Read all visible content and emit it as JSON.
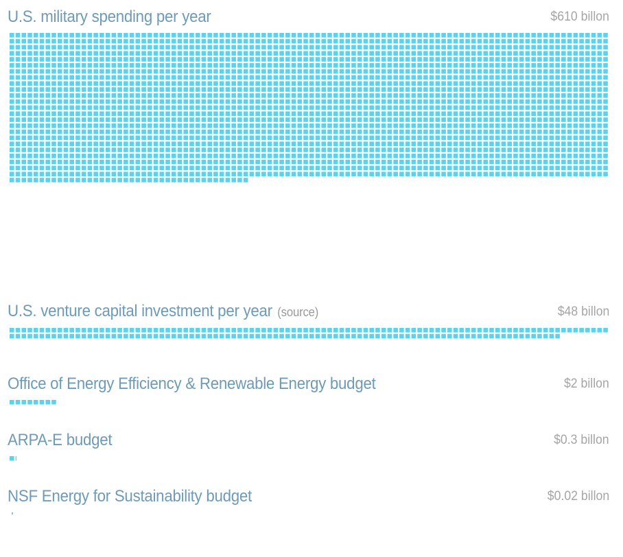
{
  "chart_data": {
    "type": "table",
    "unit_per_square_billion": 0.25,
    "square_color": "#5cd3ee",
    "label_color": "#6d9bb8",
    "value_color": "#a5a5a5",
    "rows": [
      {
        "label": "U.S. military spending per year",
        "note": "",
        "value": 610,
        "value_label": "$610 billon"
      },
      {
        "label": "U.S. venture capital investment per year",
        "note": "(source)",
        "value": 48,
        "value_label": "$48 billon"
      },
      {
        "label": "Office of Energy Efficiency & Renewable Energy budget",
        "note": "",
        "value": 2,
        "value_label": "$2 billon"
      },
      {
        "label": "ARPA-E budget",
        "note": "",
        "value": 0.3,
        "value_label": "$0.3 billon"
      },
      {
        "label": "NSF Energy for Sustainability budget",
        "note": "",
        "value": 0.02,
        "value_label": "$0.02 billon"
      }
    ]
  }
}
